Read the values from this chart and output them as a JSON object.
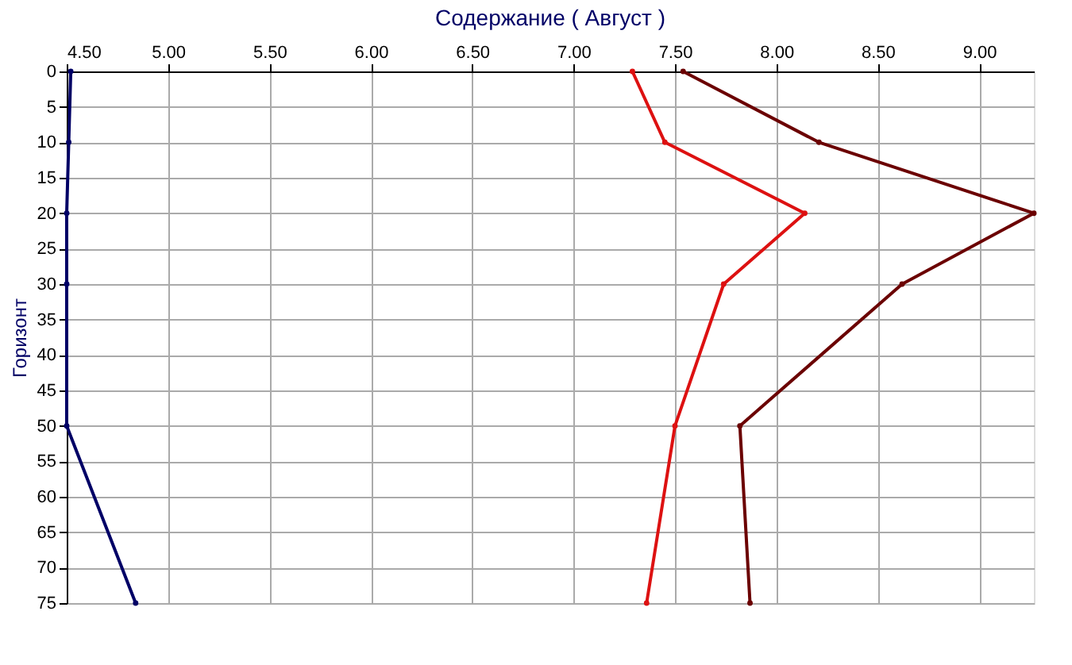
{
  "chart_data": {
    "type": "line",
    "title": "Содержание   ( Август )",
    "ylabel": "Горизонт",
    "orientation": "horizontal",
    "x": [
      0,
      10,
      20,
      30,
      50,
      75
    ],
    "series": [
      {
        "color": "#000066",
        "values": [
          4.52,
          4.51,
          4.5,
          4.5,
          4.5,
          4.84
        ]
      },
      {
        "color": "#dd1111",
        "values": [
          7.29,
          7.45,
          8.14,
          7.74,
          7.5,
          7.36
        ]
      },
      {
        "color": "#6b0000",
        "values": [
          7.54,
          8.21,
          9.27,
          8.62,
          7.82,
          7.87
        ]
      }
    ],
    "xlim": [
      4.5,
      9.27
    ],
    "xticks": [
      {
        "value": 4.5,
        "label": "4.50"
      },
      {
        "value": 5,
        "label": "5.00"
      },
      {
        "value": 5.5,
        "label": "5.50"
      },
      {
        "value": 6,
        "label": "6.00"
      },
      {
        "value": 6.5,
        "label": "6.50"
      },
      {
        "value": 7,
        "label": "7.00"
      },
      {
        "value": 7.5,
        "label": "7.50"
      },
      {
        "value": 8,
        "label": "8.00"
      },
      {
        "value": 8.5,
        "label": "8.50"
      },
      {
        "value": 9,
        "label": "9.00"
      }
    ],
    "ylim": [
      75,
      0
    ],
    "yticks": [
      0,
      5,
      10,
      15,
      20,
      25,
      30,
      35,
      40,
      45,
      50,
      55,
      60,
      65,
      70,
      75
    ],
    "grid": true,
    "marker": "circle",
    "line_style": "solid",
    "legend": false
  }
}
